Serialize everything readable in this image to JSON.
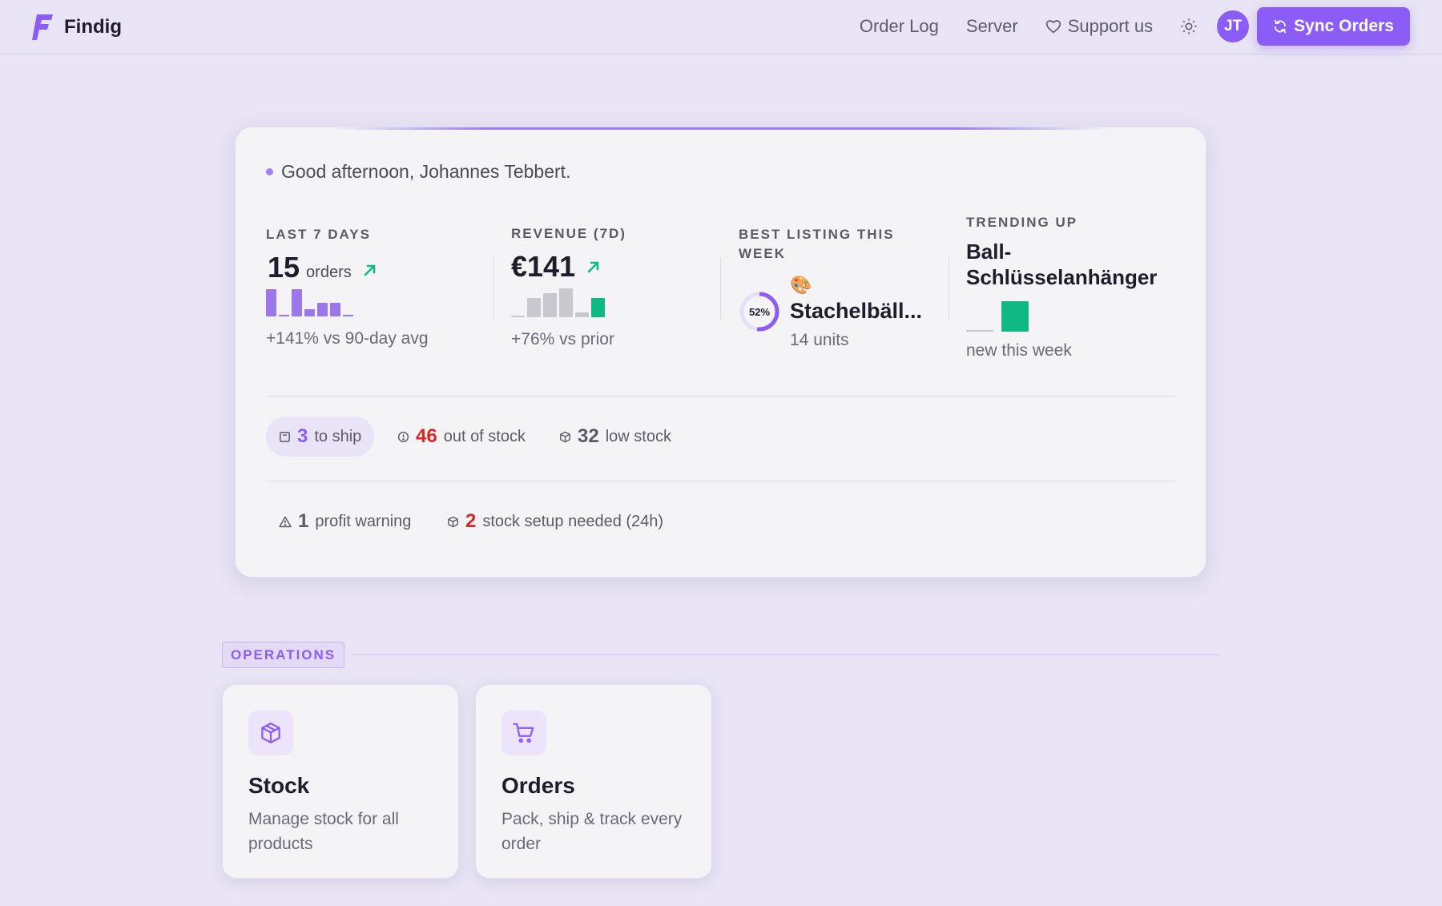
{
  "header": {
    "app_name": "Findig",
    "nav": [
      {
        "label": "Order Log"
      },
      {
        "label": "Server"
      },
      {
        "label": "Support us",
        "icon": "heart-icon"
      }
    ],
    "theme_icon": "sun-icon",
    "avatar_initials": "JT",
    "sync_label": "Sync Orders"
  },
  "summary": {
    "greeting": "Good afternoon, Johannes Tebbert.",
    "stats": {
      "orders": {
        "label": "LAST 7 DAYS",
        "value": "15",
        "unit": "orders",
        "trend": "up",
        "sparkline": [
          4,
          0,
          4,
          1,
          2,
          2,
          0
        ],
        "comparison": "+141% vs 90-day avg"
      },
      "revenue": {
        "label": "REVENUE (7D)",
        "value": "€141",
        "trend": "up",
        "sparkline": [
          0,
          4,
          5,
          6,
          1,
          4
        ],
        "comparison": "+76% vs prior"
      },
      "best_listing": {
        "label": "BEST LISTING THIS WEEK",
        "percent": 52,
        "percent_label": "52%",
        "emoji": "🎨",
        "name": "Stachelbäll...",
        "units": "14 units"
      },
      "trending": {
        "label": "TRENDING UP",
        "name": "Ball-Schlüsselanhänger",
        "sparkline": [
          0,
          1
        ],
        "note": "new this week"
      }
    },
    "alerts_row1": [
      {
        "icon": "package-icon",
        "count": "3",
        "label": "to ship",
        "color": "#8b5cf6",
        "active": true
      },
      {
        "icon": "alert-circle-icon",
        "count": "46",
        "label": "out of stock",
        "color": "#dc2626"
      },
      {
        "icon": "box-icon",
        "count": "32",
        "label": "low stock",
        "color": "#5c5a68"
      }
    ],
    "alerts_row2": [
      {
        "icon": "warning-triangle-icon",
        "count": "1",
        "label": "profit warning",
        "color": "#5c5a68"
      },
      {
        "icon": "box-icon",
        "count": "2",
        "label": "stock setup needed (24h)",
        "color": "#dc2626"
      }
    ]
  },
  "operations": {
    "section_label": "OPERATIONS",
    "tiles": [
      {
        "icon": "package-icon",
        "title": "Stock",
        "description": "Manage stock for all products"
      },
      {
        "icon": "shopping-cart-icon",
        "title": "Orders",
        "description": "Pack, ship & track every order"
      }
    ]
  },
  "colors": {
    "accent": "#8b5cf6",
    "positive": "#10b981",
    "danger": "#dc2626",
    "background": "#e8e4f3"
  }
}
